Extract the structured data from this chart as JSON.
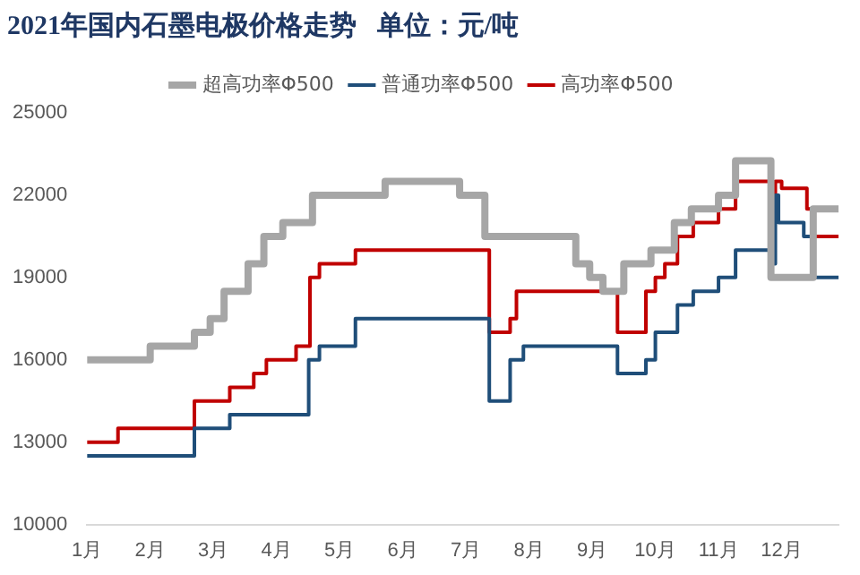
{
  "chart_data": {
    "type": "step",
    "title": "2021年国内石墨电极价格走势   单位：元/吨",
    "legend": "top",
    "grid": false,
    "marker": "none",
    "xlim": [
      1,
      12.9
    ],
    "xticks": [
      {
        "value": 1,
        "label": "1月"
      },
      {
        "value": 2,
        "label": "2月"
      },
      {
        "value": 3,
        "label": "3月"
      },
      {
        "value": 4,
        "label": "4月"
      },
      {
        "value": 5,
        "label": "5月"
      },
      {
        "value": 6,
        "label": "6月"
      },
      {
        "value": 7,
        "label": "7月"
      },
      {
        "value": 8,
        "label": "8月"
      },
      {
        "value": 9,
        "label": "9月"
      },
      {
        "value": 10,
        "label": "10月"
      },
      {
        "value": 11,
        "label": "11月"
      },
      {
        "value": 12,
        "label": "12月"
      }
    ],
    "ylim": [
      10000,
      25000
    ],
    "yticks": [
      10000,
      13000,
      16000,
      19000,
      22000,
      25000
    ],
    "series": [
      {
        "name": "超高功率Φ500",
        "color": "#a6a6a6",
        "x": [
          1,
          2.0,
          2.7,
          2.95,
          3.17,
          3.55,
          3.8,
          4.1,
          4.57,
          5.72,
          6.9,
          7.3,
          8.74,
          8.96,
          9.17,
          9.5,
          9.93,
          10.3,
          10.57,
          11.0,
          11.27,
          11.83,
          12.5,
          12.9
        ],
        "values": [
          16000,
          16500,
          17000,
          17500,
          18500,
          19500,
          20500,
          21000,
          22000,
          22500,
          22000,
          20500,
          19500,
          19000,
          18500,
          19500,
          20000,
          21000,
          21500,
          22000,
          23250,
          19000,
          21500,
          21500
        ]
      },
      {
        "name": "普通功率Φ500",
        "color": "#1f4e79",
        "x": [
          1,
          2.7,
          3.26,
          4.51,
          4.68,
          5.25,
          7.37,
          7.57,
          7.7,
          7.91,
          9.4,
          9.85,
          10.0,
          10.35,
          10.6,
          11.0,
          11.27,
          11.83,
          11.9,
          11.95,
          12.35,
          12.5,
          12.9
        ],
        "values": [
          12500,
          13500,
          14000,
          16000,
          16500,
          17500,
          14500,
          14500,
          16000,
          16500,
          15500,
          16000,
          17000,
          18000,
          18500,
          19000,
          20000,
          19500,
          22000,
          21000,
          20500,
          19000,
          19000
        ]
      },
      {
        "name": "高功率Φ500",
        "color": "#c00000",
        "x": [
          1,
          1.49,
          2.7,
          3.26,
          3.64,
          3.84,
          4.31,
          4.53,
          4.68,
          5.25,
          7.37,
          7.7,
          7.8,
          9.4,
          9.85,
          10.0,
          10.15,
          10.35,
          10.6,
          11.0,
          11.27,
          11.83,
          11.9,
          12.0,
          12.4,
          12.5,
          12.9
        ],
        "values": [
          13000,
          13500,
          14500,
          15000,
          15500,
          16000,
          16500,
          19000,
          19500,
          20000,
          17000,
          17500,
          18500,
          17000,
          18500,
          19000,
          19500,
          20500,
          21000,
          21500,
          22500,
          22000,
          22500,
          22250,
          21500,
          20500,
          20500
        ]
      }
    ]
  }
}
